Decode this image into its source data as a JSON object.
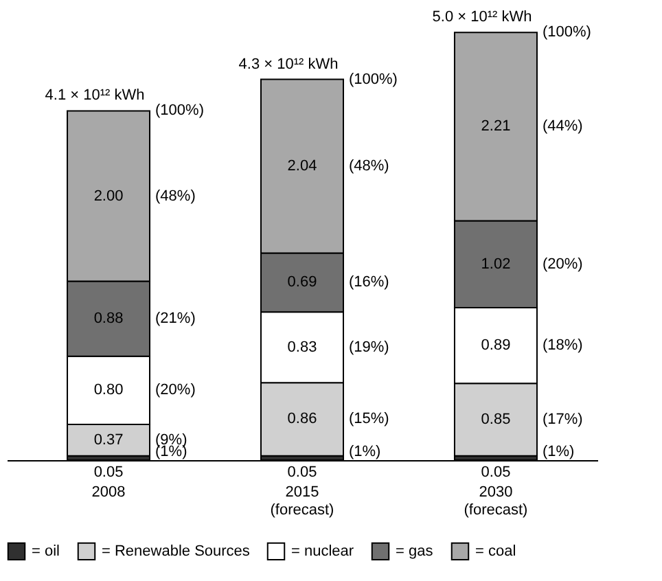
{
  "chart_data": {
    "type": "bar",
    "stacked": true,
    "legend": "bottom",
    "grid": false,
    "tick_labels": "x",
    "categories": [
      "2008",
      "2015\n(forecast)",
      "2030\n(forecast)"
    ],
    "series": [
      {
        "name": "= oil",
        "color": "#303030",
        "values": [
          0.05,
          0.05,
          0.05
        ],
        "value_labels": [
          "0.05",
          "0.05",
          "0.05"
        ]
      },
      {
        "name": "= Renewable Sources",
        "color": "#d0d0d0",
        "values": [
          0.37,
          0.86,
          0.85
        ],
        "value_labels": [
          "0.37",
          "0.86",
          "0.85"
        ]
      },
      {
        "name": "= nuclear",
        "color": "#ffffff",
        "values": [
          0.8,
          0.83,
          0.89
        ],
        "value_labels": [
          "0.80",
          "0.83",
          "0.89"
        ]
      },
      {
        "name": "= gas",
        "color": "#707070",
        "values": [
          0.88,
          0.69,
          1.02
        ],
        "value_labels": [
          "0.88",
          "0.69",
          "1.02"
        ]
      },
      {
        "name": "= coal",
        "color": "#a8a8a8",
        "values": [
          2.0,
          2.04,
          2.21
        ],
        "value_labels": [
          "2.00",
          "2.04",
          "2.21"
        ]
      }
    ],
    "totals": [
      "4.1 × 10¹² kWh",
      "4.3 × 10¹² kWh",
      "5.0 × 10¹² kWh"
    ],
    "annotations": [
      "(1%)",
      "(9%)",
      "(20%)",
      "(21%)",
      "(48%)",
      "(100%)",
      "(1%)",
      "(15%)",
      "(19%)",
      "(16%)",
      "(48%)",
      "(100%)",
      "(1%)",
      "(17%)",
      "(18%)",
      "(20%)",
      "(44%)",
      "(100%)"
    ]
  }
}
